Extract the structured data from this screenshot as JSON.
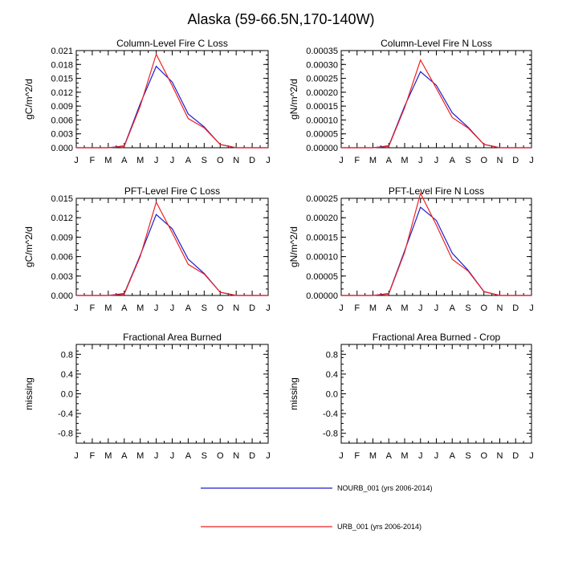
{
  "figure_title": "Alaska (59-66.5N,170-140W)",
  "month_labels": [
    "J",
    "F",
    "M",
    "A",
    "M",
    "J",
    "J",
    "A",
    "S",
    "O",
    "N",
    "D",
    "J"
  ],
  "colors": {
    "nourb": "#1f1fcc",
    "urb": "#ee2222",
    "axis": "#000000"
  },
  "legend": [
    {
      "label": "NOURB_001 (yrs 2006-2014)",
      "color": "#1f1fcc"
    },
    {
      "label": "URB_001 (yrs 2006-2014)",
      "color": "#ee2222"
    }
  ],
  "chart_data": [
    {
      "type": "line",
      "title": "Column-Level Fire C Loss",
      "ylabel": "gC/m^2/d",
      "ylim": [
        0,
        0.021
      ],
      "yticks": [
        "0.000",
        "0.003",
        "0.006",
        "0.009",
        "0.012",
        "0.015",
        "0.018",
        "0.021"
      ],
      "series": [
        {
          "name": "NOURB_001 (yrs 2006-2014)",
          "color": "#1f1fcc",
          "values": [
            0,
            0,
            0,
            0.0004,
            0.0095,
            0.0176,
            0.0142,
            0.0073,
            0.0045,
            0.0007,
            0,
            0,
            0
          ]
        },
        {
          "name": "URB_001 (yrs 2006-2014)",
          "color": "#ee2222",
          "values": [
            0,
            0,
            0,
            0.0003,
            0.009,
            0.0202,
            0.0134,
            0.0063,
            0.0043,
            0.0007,
            0,
            0,
            0
          ]
        }
      ]
    },
    {
      "type": "line",
      "title": "Column-Level Fire N Loss",
      "ylabel": "gN/m^2/d",
      "ylim": [
        0,
        0.00035
      ],
      "yticks": [
        "0.00000",
        "0.00005",
        "0.00010",
        "0.00015",
        "0.00020",
        "0.00025",
        "0.00030",
        "0.00035"
      ],
      "series": [
        {
          "name": "NOURB_001 (yrs 2006-2014)",
          "color": "#1f1fcc",
          "values": [
            0,
            0,
            0,
            7e-06,
            0.00015,
            0.000274,
            0.000225,
            0.000126,
            7.4e-05,
            1.2e-05,
            0,
            0,
            0
          ]
        },
        {
          "name": "URB_001 (yrs 2006-2014)",
          "color": "#ee2222",
          "values": [
            0,
            0,
            0,
            5e-06,
            0.000144,
            0.000316,
            0.000214,
            0.000109,
            7.1e-05,
            1.2e-05,
            0,
            0,
            0
          ]
        }
      ]
    },
    {
      "type": "line",
      "title": "PFT-Level Fire C Loss",
      "ylabel": "gC/m^2/d",
      "ylim": [
        0,
        0.015
      ],
      "yticks": [
        "0.000",
        "0.003",
        "0.006",
        "0.009",
        "0.012",
        "0.015"
      ],
      "series": [
        {
          "name": "NOURB_001 (yrs 2006-2014)",
          "color": "#1f1fcc",
          "values": [
            0,
            0,
            0,
            0.0003,
            0.0062,
            0.0125,
            0.0103,
            0.0056,
            0.0034,
            0.0005,
            0,
            0,
            0
          ]
        },
        {
          "name": "URB_001 (yrs 2006-2014)",
          "color": "#ee2222",
          "values": [
            0,
            0,
            0,
            0.0002,
            0.006,
            0.0144,
            0.0097,
            0.0048,
            0.0033,
            0.0005,
            0,
            0,
            0
          ]
        }
      ]
    },
    {
      "type": "line",
      "title": "PFT-Level Fire N Loss",
      "ylabel": "gN/m^2/d",
      "ylim": [
        0,
        0.00025
      ],
      "yticks": [
        "0.00000",
        "0.00005",
        "0.00010",
        "0.00015",
        "0.00020",
        "0.00025"
      ],
      "series": [
        {
          "name": "NOURB_001 (yrs 2006-2014)",
          "color": "#1f1fcc",
          "values": [
            0,
            0,
            0,
            5e-06,
            0.000115,
            0.000227,
            0.000193,
            0.000109,
            6.5e-05,
            1e-05,
            0,
            0,
            0
          ]
        },
        {
          "name": "URB_001 (yrs 2006-2014)",
          "color": "#ee2222",
          "values": [
            0,
            0,
            0,
            4e-06,
            0.000111,
            0.000263,
            0.000181,
            9.3e-05,
            6.3e-05,
            1e-05,
            0,
            0,
            0
          ]
        }
      ]
    },
    {
      "type": "line",
      "title": "Fractional Area Burned",
      "ylabel": "missing",
      "ylim": [
        -1,
        1
      ],
      "yticks": [
        "-0.8",
        "-0.4",
        "0.0",
        "0.4",
        "0.8"
      ],
      "ytick_values": [
        -0.8,
        -0.4,
        0.0,
        0.4,
        0.8
      ],
      "series": []
    },
    {
      "type": "line",
      "title": "Fractional Area Burned - Crop",
      "ylabel": "missing",
      "ylim": [
        -1,
        1
      ],
      "yticks": [
        "-0.8",
        "-0.4",
        "0.0",
        "0.4",
        "0.8"
      ],
      "ytick_values": [
        -0.8,
        -0.4,
        0.0,
        0.4,
        0.8
      ],
      "series": []
    }
  ]
}
